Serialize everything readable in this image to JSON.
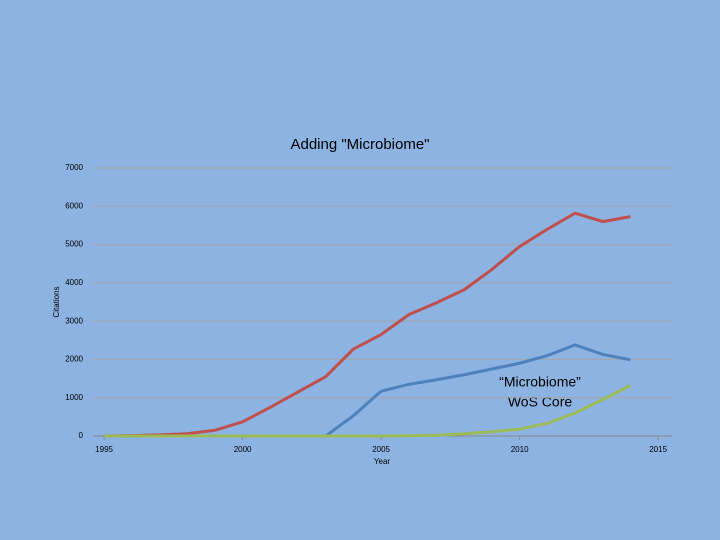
{
  "chart_data": {
    "type": "line",
    "title": "Adding \"Microbiome\"",
    "x_label": "Year",
    "y_label": "Citations",
    "annotation": [
      "“Microbiome”",
      "WoS Core"
    ],
    "x": [
      1995,
      1996,
      1997,
      1998,
      1999,
      2000,
      2001,
      2002,
      2003,
      2004,
      2005,
      2006,
      2007,
      2008,
      2009,
      2010,
      2011,
      2012,
      2013,
      2014
    ],
    "series": [
      {
        "color": "#c0504d",
        "values": [
          0,
          10,
          30,
          60,
          150,
          370,
          750,
          1150,
          1550,
          2270,
          2650,
          3170,
          3480,
          3820,
          4350,
          4950,
          5400,
          5820,
          5600,
          5730
        ]
      },
      {
        "color": "#4f81bd",
        "values": [
          0,
          0,
          0,
          0,
          0,
          0,
          0,
          0,
          0,
          530,
          1170,
          1350,
          1470,
          1600,
          1750,
          1900,
          2100,
          2380,
          2130,
          1990
        ]
      },
      {
        "color": "#9bbb59",
        "values": [
          0,
          0,
          0,
          0,
          0,
          0,
          0,
          0,
          0,
          0,
          0,
          5,
          20,
          60,
          110,
          180,
          330,
          600,
          950,
          1320
        ]
      }
    ],
    "xlim": [
      1994.6,
      2015.5
    ],
    "xticks": [
      1995,
      2000,
      2005,
      2010,
      2015
    ],
    "ylim": [
      0,
      7000
    ],
    "yticks": [
      0,
      1000,
      2000,
      3000,
      4000,
      5000,
      6000,
      7000
    ],
    "grid": true
  }
}
